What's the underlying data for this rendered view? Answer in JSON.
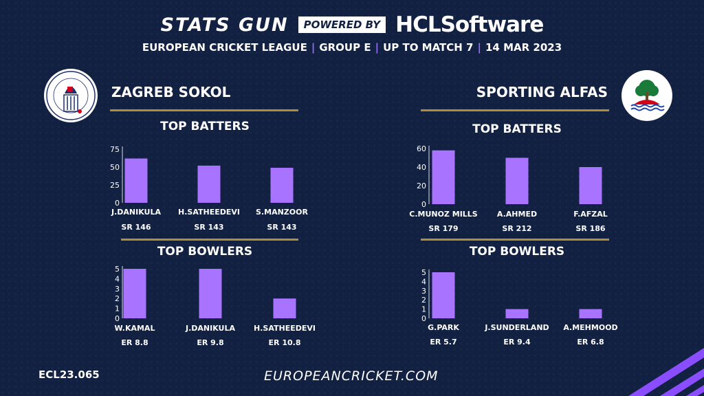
{
  "header": {
    "brand": "STATS GUN",
    "powered_by": "POWERED BY",
    "sponsor": "HCLSoftware",
    "league": "EUROPEAN CRICKET LEAGUE",
    "group": "GROUP  E",
    "up_to": "UP TO MATCH  7",
    "date": "14 MAR 2023"
  },
  "teams": [
    {
      "name": "ZAGREB SOKOL",
      "logo": "zagreb-sokol-crest"
    },
    {
      "name": "SPORTING ALFAS",
      "logo": "sporting-alfas-tree"
    }
  ],
  "sections": {
    "batters": "TOP BATTERS",
    "bowlers": "TOP BOWLERS"
  },
  "footer": {
    "id": "ECL23.065",
    "url": "EUROPEANCRICKET.COM"
  },
  "colors": {
    "background": "#122142",
    "bar": "#a874ff",
    "rule": "#b08d3a"
  },
  "chart_data": [
    {
      "type": "bar",
      "team": "ZAGREB SOKOL",
      "section": "TOP BATTERS",
      "categories": [
        "J.DANIKULA",
        "H.SATHEEDEVI",
        "S.MANZOOR"
      ],
      "values": [
        62,
        52,
        49
      ],
      "sublabels": [
        "SR 146",
        "SR 143",
        "SR 143"
      ],
      "yticks": [
        0,
        25,
        50,
        75
      ],
      "ylim": [
        0,
        75
      ]
    },
    {
      "type": "bar",
      "team": "ZAGREB SOKOL",
      "section": "TOP BOWLERS",
      "categories": [
        "W.KAMAL",
        "J.DANIKULA",
        "H.SATHEEDEVI"
      ],
      "values": [
        5,
        5,
        2
      ],
      "sublabels": [
        "ER 8.8",
        "ER 9.8",
        "ER 10.8"
      ],
      "yticks": [
        0,
        1,
        2,
        3,
        4,
        5
      ],
      "ylim": [
        0,
        5
      ]
    },
    {
      "type": "bar",
      "team": "SPORTING ALFAS",
      "section": "TOP BATTERS",
      "categories": [
        "C.MUNOZ MILLS",
        "A.AHMED",
        "F.AFZAL"
      ],
      "values": [
        58,
        50,
        40
      ],
      "sublabels": [
        "SR 179",
        "SR 212",
        "SR 186"
      ],
      "yticks": [
        0,
        20,
        40,
        60
      ],
      "ylim": [
        0,
        60
      ]
    },
    {
      "type": "bar",
      "team": "SPORTING ALFAS",
      "section": "TOP BOWLERS",
      "categories": [
        "G.PARK",
        "J.SUNDERLAND",
        "A.MEHMOOD"
      ],
      "values": [
        5,
        1,
        1
      ],
      "sublabels": [
        "ER 5.7",
        "ER 9.4",
        "ER 6.8"
      ],
      "yticks": [
        0,
        1,
        2,
        3,
        4,
        5
      ],
      "ylim": [
        0,
        5
      ]
    }
  ]
}
